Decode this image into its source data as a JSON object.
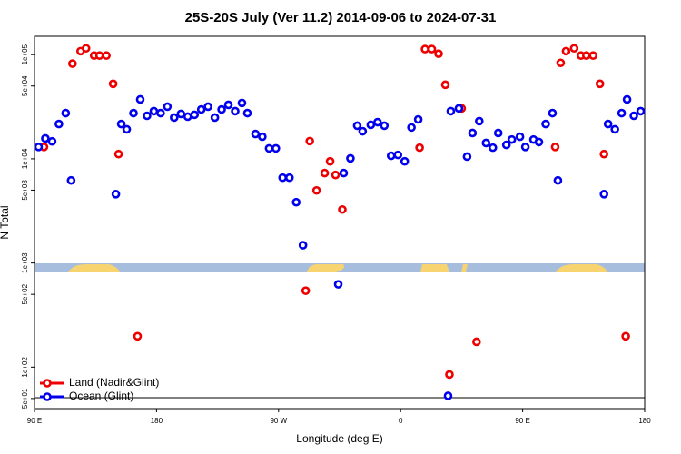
{
  "chart_data": {
    "type": "scatter",
    "title": "25S-20S July (Ver 11.2)   2014-09-06 to 2024-07-31",
    "x_label": "Longitude (deg E)",
    "y_label": "N Total",
    "log_y": true,
    "legend": "bottom-left",
    "xlim": [
      90,
      540
    ],
    "ylim": [
      40,
      150000
    ],
    "xticks": [
      {
        "value": 90,
        "label": "90 E"
      },
      180,
      {
        "value": 270,
        "label": "90 W"
      },
      {
        "value": 360,
        "label": "0"
      },
      {
        "value": 450,
        "label": "90 E"
      },
      {
        "value": 540,
        "label": "180"
      }
    ],
    "yticks": [
      {
        "value": 50,
        "label": "5e+01"
      },
      {
        "value": 100,
        "label": "1e+02"
      },
      {
        "value": 500,
        "label": "5e+02"
      },
      {
        "value": 1000,
        "label": "1e+03"
      },
      {
        "value": 5000,
        "label": "5e+03"
      },
      {
        "value": 10000,
        "label": "1e+04"
      },
      {
        "value": 50000,
        "label": "5e+04"
      },
      {
        "value": 100000,
        "label": "1e+05"
      }
    ],
    "series": [
      {
        "name": "Land (Nadir&Glint)",
        "color": "#ee0000",
        "x": [
          97,
          118,
          124,
          128,
          134,
          138,
          143,
          148,
          152,
          166,
          290,
          293,
          298,
          304,
          308,
          312,
          317,
          374,
          378,
          383,
          388,
          393,
          396,
          405,
          416,
          474,
          478,
          482,
          488,
          493,
          497,
          502,
          507,
          510,
          526
        ],
        "values": [
          13000,
          82000,
          108000,
          115000,
          98000,
          98000,
          98000,
          52500,
          11100,
          198,
          542,
          14800,
          4970,
          7300,
          9460,
          7000,
          3260,
          12800,
          113000,
          113000,
          102000,
          51400,
          85,
          30500,
          175,
          13000,
          83400,
          108000,
          115000,
          98000,
          98000,
          98000,
          52500,
          11100,
          198
        ]
      },
      {
        "name": "Ocean (Glint)",
        "color": "#0000ee",
        "x": [
          93,
          98,
          103,
          108,
          113,
          117,
          150,
          154,
          158,
          163,
          168,
          173,
          178,
          183,
          188,
          193,
          198,
          203,
          208,
          213,
          218,
          223,
          228,
          233,
          238,
          243,
          247,
          253,
          258,
          263,
          268,
          273,
          278,
          283,
          288,
          314,
          318,
          323,
          328,
          332,
          338,
          343,
          348,
          353,
          358,
          363,
          368,
          373,
          395,
          397,
          403,
          409,
          413,
          418,
          423,
          428,
          432,
          438,
          442,
          448,
          452,
          458,
          462,
          467,
          472,
          476,
          510,
          513,
          518,
          523,
          527,
          532,
          537
        ],
        "values": [
          13000,
          15700,
          14700,
          21600,
          27500,
          6200,
          4580,
          21600,
          19200,
          27500,
          37200,
          25900,
          28700,
          27500,
          31700,
          24900,
          27000,
          25400,
          26500,
          29800,
          31700,
          24900,
          29800,
          33000,
          28700,
          34400,
          27500,
          17300,
          16300,
          12600,
          12600,
          6590,
          6590,
          3830,
          1480,
          624,
          7300,
          10100,
          20800,
          18400,
          21200,
          22500,
          20800,
          10700,
          10900,
          9460,
          20000,
          23900,
          53,
          28700,
          30500,
          10500,
          17700,
          23000,
          14200,
          12800,
          17700,
          13600,
          15300,
          16300,
          13000,
          15300,
          14500,
          21600,
          27500,
          6200,
          4580,
          21600,
          19200,
          27500,
          37200,
          25900,
          28700
        ]
      }
    ]
  }
}
